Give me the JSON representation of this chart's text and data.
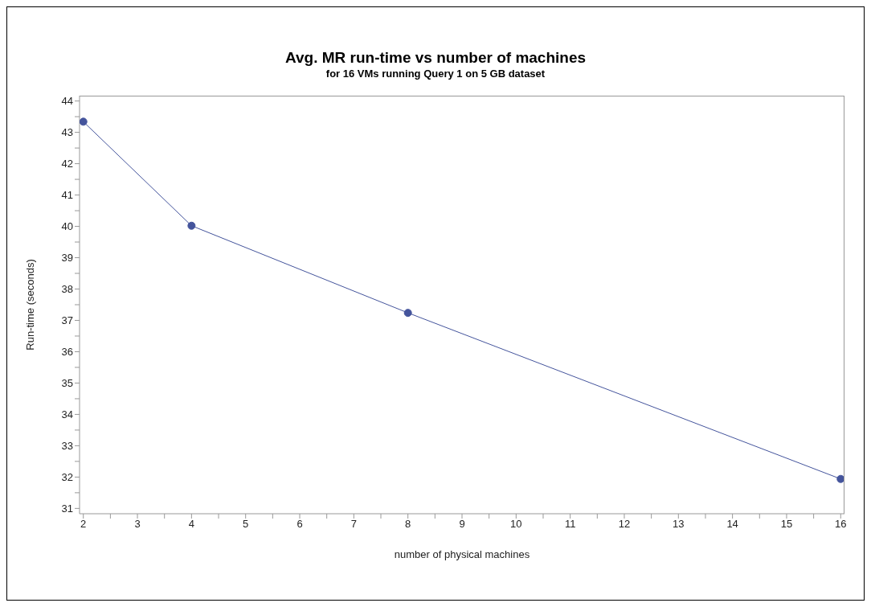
{
  "chart_data": {
    "type": "line",
    "title": "Avg. MR run-time vs number of machines",
    "subtitle": "for 16 VMs running Query 1 on 5 GB dataset",
    "xlabel": "number of physical machines",
    "ylabel": "Run-time (seconds)",
    "x": [
      2,
      4,
      8,
      16
    ],
    "series": [
      {
        "color": "#44549c",
        "values": [
          43.34,
          40.02,
          37.24,
          31.94
        ]
      }
    ],
    "xlim": [
      1.93,
      16.07
    ],
    "xticks": [
      2,
      {
        "value": 2.5,
        "label": null
      },
      3,
      {
        "value": 3.5,
        "label": null
      },
      4,
      {
        "value": 4.5,
        "label": null
      },
      5,
      {
        "value": 5.5,
        "label": null
      },
      6,
      {
        "value": 6.5,
        "label": null
      },
      7,
      {
        "value": 7.5,
        "label": null
      },
      8,
      {
        "value": 8.5,
        "label": null
      },
      9,
      {
        "value": 9.5,
        "label": null
      },
      10,
      {
        "value": 10.5,
        "label": null
      },
      11,
      {
        "value": 11.5,
        "label": null
      },
      12,
      {
        "value": 12.5,
        "label": null
      },
      13,
      {
        "value": 13.5,
        "label": null
      },
      14,
      {
        "value": 14.5,
        "label": null
      },
      15,
      {
        "value": 15.5,
        "label": null
      },
      16
    ],
    "ylim": [
      30.83,
      44.17
    ],
    "yticks": [
      31,
      {
        "value": 31.5,
        "label": null
      },
      32,
      {
        "value": 32.5,
        "label": null
      },
      33,
      {
        "value": 33.5,
        "label": null
      },
      34,
      {
        "value": 34.5,
        "label": null
      },
      35,
      {
        "value": 35.5,
        "label": null
      },
      36,
      {
        "value": 36.5,
        "label": null
      },
      37,
      {
        "value": 37.5,
        "label": null
      },
      38,
      {
        "value": 38.5,
        "label": null
      },
      39,
      {
        "value": 39.5,
        "label": null
      },
      40,
      {
        "value": 40.5,
        "label": null
      },
      41,
      {
        "value": 41.5,
        "label": null
      },
      42,
      {
        "value": 42.5,
        "label": null
      },
      43,
      {
        "value": 43.5,
        "label": null
      },
      44
    ],
    "marker": "circle",
    "grid": false,
    "legend": false
  }
}
